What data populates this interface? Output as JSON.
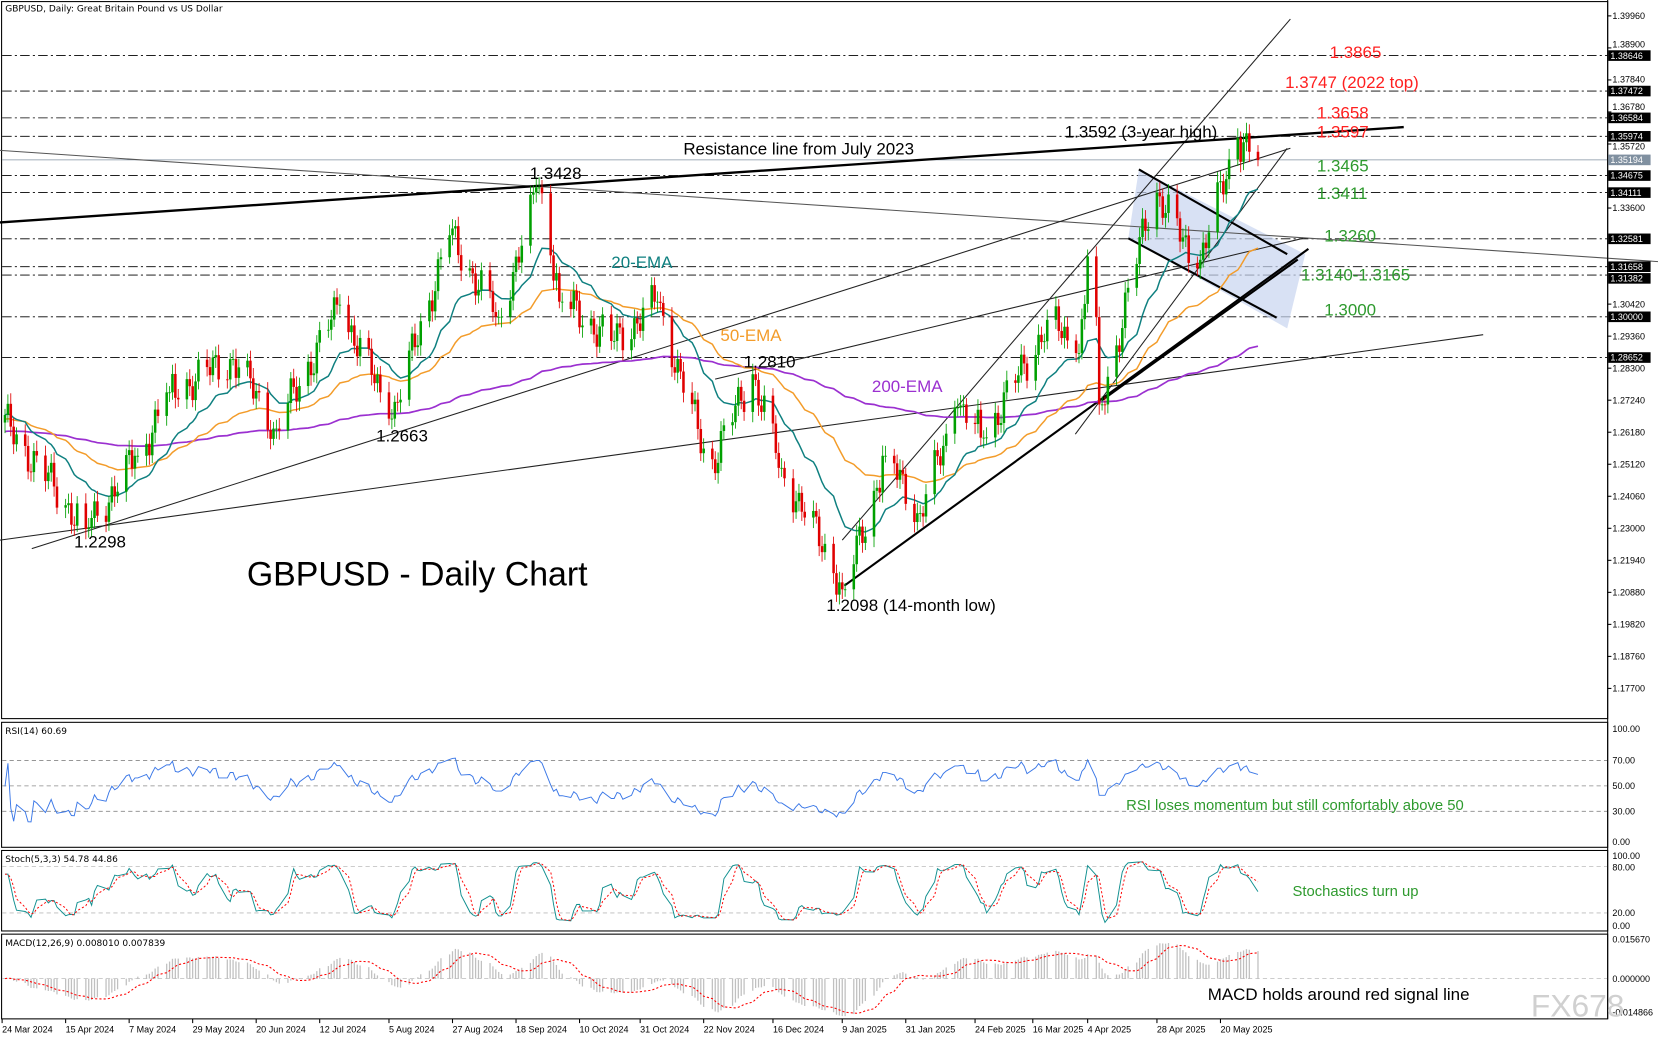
{
  "header": {
    "symbol_title": "GBPUSD, Daily:  Great Britain Pound vs US Dollar",
    "rsi_title": "RSI(14) 60.69",
    "stoch_title": "Stoch(5,3,3) 54.78 44.86",
    "macd_title": "MACD(12,26,9) 0.008010 0.007839"
  },
  "chart_title": "GBPUSD - Daily Chart",
  "watermark": "FX678",
  "colors": {
    "up": "#00a000",
    "down": "#e00000",
    "ema20": "#0f8080",
    "ema50": "#f39c2a",
    "ema200": "#9b30d0",
    "rsi": "#3b78e7",
    "stoch_main": "#0f8f8f",
    "signal": "#ff0000",
    "hist": "#c0c0c0",
    "resistance_text": "#ff2020",
    "support_text": "#2e9a2e"
  },
  "chart_data": {
    "type": "candlestick",
    "price_axis": {
      "range": [
        1.177,
        1.3996
      ],
      "ticks": [
        "1.39960",
        "1.38900",
        "1.37840",
        "1.36780",
        "1.35720",
        "1.33600",
        "1.30420",
        "1.29360",
        "1.28300",
        "1.27240",
        "1.26180",
        "1.25120",
        "1.24060",
        "1.23000",
        "1.21940",
        "1.20880",
        "1.19820",
        "1.18760",
        "1.17700"
      ],
      "current_price": "1.35194",
      "level_tags": [
        "1.38646",
        "1.37472",
        "1.36584",
        "1.35974",
        "1.34675",
        "1.34111",
        "1.32581",
        "1.31658",
        "1.31382",
        "1.30000",
        "1.28652"
      ]
    },
    "date_axis": [
      "24 Mar 2024",
      "15 Apr 2024",
      "7 May 2024",
      "29 May 2024",
      "20 Jun 2024",
      "12 Jul 2024",
      "5 Aug 2024",
      "27 Aug 2024",
      "18 Sep 2024",
      "10 Oct 2024",
      "31 Oct 2024",
      "22 Nov 2024",
      "16 Dec 2024",
      "9 Jan 2025",
      "31 Jan 2025",
      "24 Feb 2025",
      "16 Mar 2025",
      "4 Apr 2025",
      "28 Apr 2025",
      "20 May 2025"
    ],
    "price_swings": [
      [
        "2024-03-25",
        1.265
      ],
      [
        "2024-04-22",
        1.2298
      ],
      [
        "2024-05-10",
        1.254
      ],
      [
        "2024-05-21",
        1.275
      ],
      [
        "2024-06-12",
        1.286
      ],
      [
        "2024-06-27",
        1.263
      ],
      [
        "2024-07-19",
        1.304
      ],
      [
        "2024-08-06",
        1.2663
      ],
      [
        "2024-08-26",
        1.327
      ],
      [
        "2024-09-12",
        1.3
      ],
      [
        "2024-09-26",
        1.3428
      ],
      [
        "2024-10-04",
        1.305
      ],
      [
        "2024-10-22",
        1.292
      ],
      [
        "2024-11-06",
        1.305
      ],
      [
        "2024-11-24",
        1.25
      ],
      [
        "2024-12-09",
        1.281
      ],
      [
        "2024-12-19",
        1.25
      ],
      [
        "2025-01-10",
        1.2098
      ],
      [
        "2025-01-24",
        1.254
      ],
      [
        "2025-02-05",
        1.235
      ],
      [
        "2025-02-18",
        1.27
      ],
      [
        "2025-02-27",
        1.26
      ],
      [
        "2025-03-22",
        1.299
      ],
      [
        "2025-04-01",
        1.288
      ],
      [
        "2025-04-05",
        1.32
      ],
      [
        "2025-04-09",
        1.271
      ],
      [
        "2025-04-27",
        1.343
      ],
      [
        "2025-05-12",
        1.316
      ],
      [
        "2025-05-26",
        1.3592
      ],
      [
        "2025-06-02",
        1.3519
      ]
    ],
    "indicators": {
      "ema_labels": {
        "ema20": "20-EMA",
        "ema50": "50-EMA",
        "ema200": "200-EMA"
      },
      "rsi": {
        "ticks": [
          "100.00",
          "70.00",
          "50.00",
          "30.00",
          "0.00"
        ],
        "value": 60.69
      },
      "stoch": {
        "ticks": [
          "100.00",
          "80.00",
          "20.00",
          "0.00"
        ],
        "main": 54.78,
        "signal": 44.86
      },
      "macd": {
        "ticks": [
          "0.015670",
          "0.000000",
          "-0.014866"
        ],
        "macd": 0.00801,
        "signal": 0.007839
      }
    }
  },
  "annotations": {
    "r1": "1.3865",
    "r2": "1.3747  (2022 top)",
    "r3": "1.3658",
    "r4": "1.3597",
    "s1": "1.3465",
    "s2": "1.3411",
    "s3": "1.3260",
    "s4": "1.3140-1.3165",
    "s5": "1.3000",
    "high3y": "1.3592 (3-year high)",
    "resistance_line": "Resistance line from July 2023",
    "p1": "1.3428",
    "p2": "1.2810",
    "p3": "1.2663",
    "p4": "1.2298",
    "low14m": "1.2098 (14-month low)",
    "rsi_note": "RSI loses momentum but still comfortably above 50",
    "stoch_note": "Stochastics turn up",
    "macd_note": "MACD holds around red signal line"
  }
}
